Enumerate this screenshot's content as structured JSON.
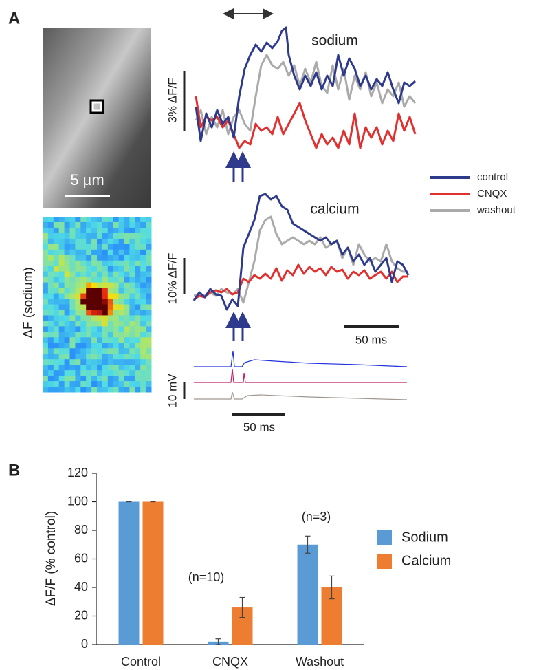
{
  "panel_a": {
    "label": "A",
    "scale_bar_image": "5 µm",
    "heatmap_label": "ΔF (sodium)",
    "sodium_title": "sodium",
    "sodium_scale": "3% ΔF/F",
    "calcium_title": "calcium",
    "calcium_scale": "10% ΔF/F",
    "time_scale_imaging": "50 ms",
    "voltage_scale": "10 mV",
    "time_scale_ephys": "50 ms",
    "legend": [
      {
        "name": "control",
        "color": "#2e3a8c"
      },
      {
        "name": "CNQX",
        "color": "#e03030"
      },
      {
        "name": "washout",
        "color": "#aaaaaa"
      }
    ]
  },
  "chart_data": {
    "type": "bar",
    "panel_label": "B",
    "y_label": "ΔF/F (% control)",
    "categories": [
      "Control",
      "CNQX",
      "Washout"
    ],
    "series": [
      {
        "name": "Sodium",
        "color": "#5b9bd5",
        "values": [
          100,
          2,
          70
        ],
        "errors": [
          0,
          2,
          6
        ]
      },
      {
        "name": "Calcium",
        "color": "#ed7d31",
        "values": [
          100,
          26,
          40
        ],
        "errors": [
          0,
          7,
          8
        ]
      }
    ],
    "annotations": [
      "(n=10)",
      "(n=3)"
    ],
    "ylim": [
      0,
      120
    ],
    "yticks": [
      0,
      20,
      40,
      60,
      80,
      100,
      120
    ]
  }
}
